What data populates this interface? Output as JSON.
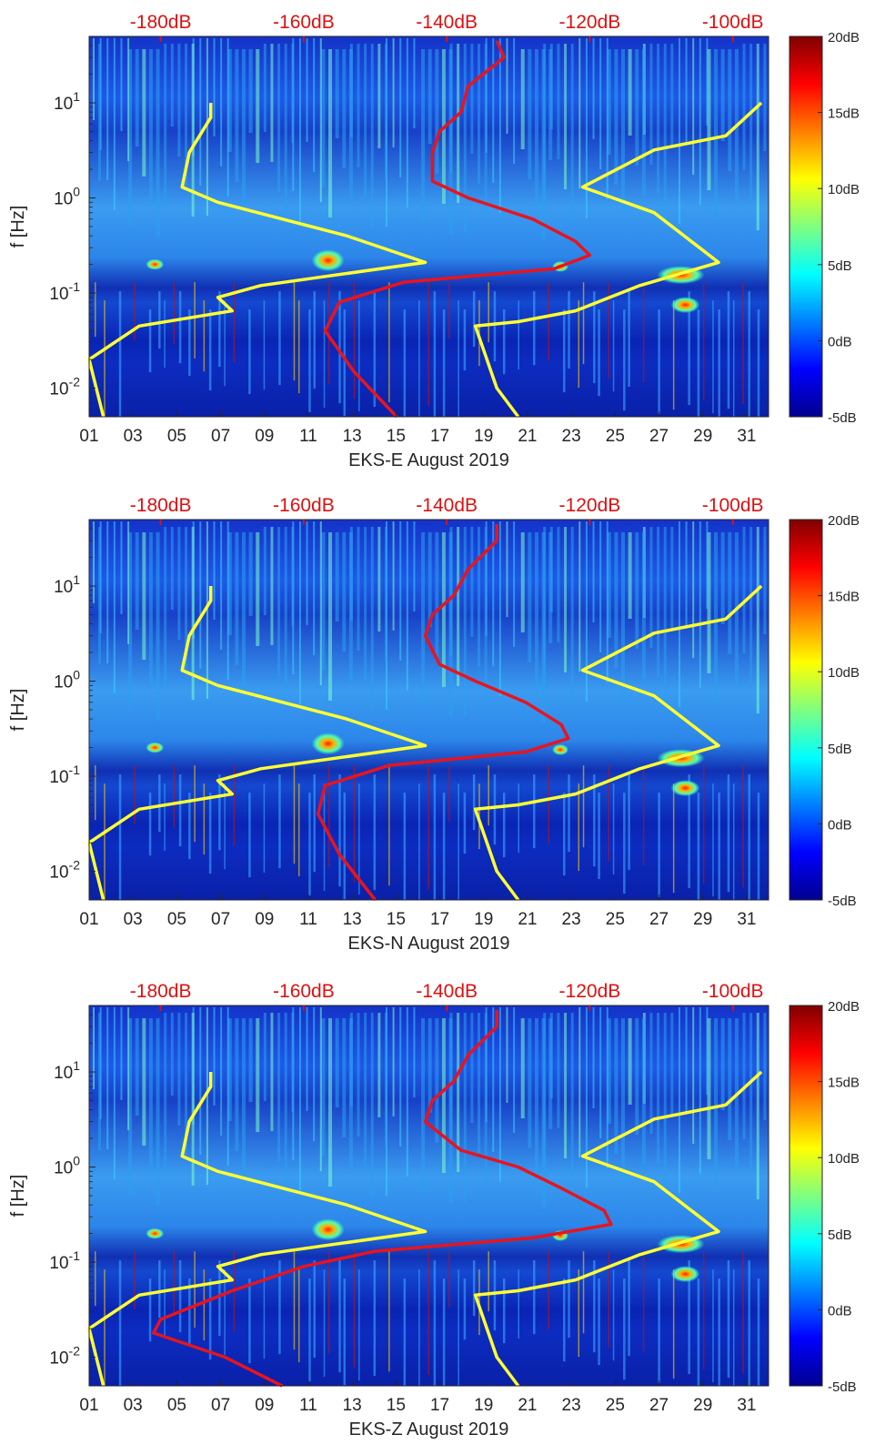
{
  "chart_data": [
    {
      "type": "heatmap",
      "title": "",
      "xlabel": "EKS-E August 2019",
      "ylabel": "f [Hz]",
      "x_ticks": [
        "01",
        "03",
        "05",
        "07",
        "09",
        "11",
        "13",
        "15",
        "17",
        "19",
        "21",
        "23",
        "25",
        "27",
        "29",
        "31"
      ],
      "x_range_days": [
        1,
        32
      ],
      "y_scale": "log",
      "ylim": [
        0.005,
        50
      ],
      "y_ticks": [
        "10-2",
        "10-1",
        "100",
        "101"
      ],
      "top_axis_ticks": [
        "-180dB",
        "-160dB",
        "-140dB",
        "-120dB",
        "-100dB"
      ],
      "top_axis_range": [
        -190,
        -95
      ],
      "colorbar": {
        "ticks": [
          "-5dB",
          "0dB",
          "5dB",
          "10dB",
          "15dB",
          "20dB"
        ],
        "range": [
          -5,
          20
        ],
        "colormap": "jet"
      },
      "series": [
        {
          "color": "#ffff33",
          "points": [
            [
              -173,
              10
            ],
            [
              -173,
              7
            ],
            [
              -176,
              3
            ],
            [
              -177,
              1.3
            ],
            [
              -172,
              0.9
            ],
            [
              -154,
              0.4
            ],
            [
              -143,
              0.21
            ],
            [
              -166,
              0.12
            ],
            [
              -172,
              0.09
            ],
            [
              -170,
              0.065
            ],
            [
              -183,
              0.045
            ],
            [
              -190,
              0.02
            ],
            [
              -188,
              0.005
            ]
          ]
        },
        {
          "color": "#ffff33",
          "points": [
            [
              -96,
              10
            ],
            [
              -101,
              4.5
            ],
            [
              -111,
              3.2
            ],
            [
              -121,
              1.3
            ],
            [
              -111,
              0.7
            ],
            [
              -102,
              0.21
            ],
            [
              -113,
              0.12
            ],
            [
              -122,
              0.065
            ],
            [
              -130,
              0.05
            ],
            [
              -136,
              0.045
            ],
            [
              -133,
              0.01
            ],
            [
              -130,
              0.005
            ]
          ]
        },
        {
          "color": "#e8141e",
          "points": [
            [
              -133,
              45
            ],
            [
              -132,
              30
            ],
            [
              -137,
              15
            ],
            [
              -138,
              8
            ],
            [
              -141,
              5
            ],
            [
              -142,
              3
            ],
            [
              -142,
              1.5
            ],
            [
              -137,
              1.0
            ],
            [
              -128,
              0.6
            ],
            [
              -122,
              0.35
            ],
            [
              -120,
              0.25
            ],
            [
              -125,
              0.18
            ],
            [
              -146,
              0.13
            ],
            [
              -155,
              0.08
            ],
            [
              -157,
              0.04
            ],
            [
              -153,
              0.015
            ],
            [
              -147,
              0.005
            ]
          ]
        }
      ]
    },
    {
      "type": "heatmap",
      "title": "",
      "xlabel": "EKS-N August 2019",
      "ylabel": "f [Hz]",
      "x_ticks": [
        "01",
        "03",
        "05",
        "07",
        "09",
        "11",
        "13",
        "15",
        "17",
        "19",
        "21",
        "23",
        "25",
        "27",
        "29",
        "31"
      ],
      "x_range_days": [
        1,
        32
      ],
      "y_scale": "log",
      "ylim": [
        0.005,
        50
      ],
      "y_ticks": [
        "10-2",
        "10-1",
        "100",
        "101"
      ],
      "top_axis_ticks": [
        "-180dB",
        "-160dB",
        "-140dB",
        "-120dB",
        "-100dB"
      ],
      "top_axis_range": [
        -190,
        -95
      ],
      "colorbar": {
        "ticks": [
          "-5dB",
          "0dB",
          "5dB",
          "10dB",
          "15dB",
          "20dB"
        ],
        "range": [
          -5,
          20
        ],
        "colormap": "jet"
      },
      "series": [
        {
          "color": "#ffff33",
          "points": [
            [
              -173,
              10
            ],
            [
              -173,
              7
            ],
            [
              -176,
              3
            ],
            [
              -177,
              1.3
            ],
            [
              -172,
              0.9
            ],
            [
              -154,
              0.4
            ],
            [
              -143,
              0.21
            ],
            [
              -166,
              0.12
            ],
            [
              -172,
              0.09
            ],
            [
              -170,
              0.065
            ],
            [
              -183,
              0.045
            ],
            [
              -190,
              0.02
            ],
            [
              -188,
              0.005
            ]
          ]
        },
        {
          "color": "#ffff33",
          "points": [
            [
              -96,
              10
            ],
            [
              -101,
              4.5
            ],
            [
              -111,
              3.2
            ],
            [
              -121,
              1.3
            ],
            [
              -111,
              0.7
            ],
            [
              -102,
              0.21
            ],
            [
              -113,
              0.12
            ],
            [
              -122,
              0.065
            ],
            [
              -130,
              0.05
            ],
            [
              -136,
              0.045
            ],
            [
              -133,
              0.01
            ],
            [
              -130,
              0.005
            ]
          ]
        },
        {
          "color": "#e8141e",
          "points": [
            [
              -133,
              45
            ],
            [
              -133,
              30
            ],
            [
              -137,
              15
            ],
            [
              -139,
              8
            ],
            [
              -142,
              5
            ],
            [
              -143,
              3
            ],
            [
              -141,
              1.5
            ],
            [
              -136,
              1.0
            ],
            [
              -129,
              0.6
            ],
            [
              -124,
              0.35
            ],
            [
              -123,
              0.25
            ],
            [
              -129,
              0.18
            ],
            [
              -148,
              0.13
            ],
            [
              -157,
              0.08
            ],
            [
              -158,
              0.04
            ],
            [
              -155,
              0.015
            ],
            [
              -150,
              0.005
            ]
          ]
        }
      ]
    },
    {
      "type": "heatmap",
      "title": "",
      "xlabel": "EKS-Z August 2019",
      "ylabel": "f [Hz]",
      "x_ticks": [
        "01",
        "03",
        "05",
        "07",
        "09",
        "11",
        "13",
        "15",
        "17",
        "19",
        "21",
        "23",
        "25",
        "27",
        "29",
        "31"
      ],
      "x_range_days": [
        1,
        32
      ],
      "y_scale": "log",
      "ylim": [
        0.005,
        50
      ],
      "y_ticks": [
        "10-2",
        "10-1",
        "100",
        "101"
      ],
      "top_axis_ticks": [
        "-180dB",
        "-160dB",
        "-140dB",
        "-120dB",
        "-100dB"
      ],
      "top_axis_range": [
        -190,
        -95
      ],
      "colorbar": {
        "ticks": [
          "-5dB",
          "0dB",
          "5dB",
          "10dB",
          "15dB",
          "20dB"
        ],
        "range": [
          -5,
          20
        ],
        "colormap": "jet"
      },
      "series": [
        {
          "color": "#ffff33",
          "points": [
            [
              -173,
              10
            ],
            [
              -173,
              7
            ],
            [
              -176,
              3
            ],
            [
              -177,
              1.3
            ],
            [
              -172,
              0.9
            ],
            [
              -154,
              0.4
            ],
            [
              -143,
              0.21
            ],
            [
              -166,
              0.12
            ],
            [
              -172,
              0.09
            ],
            [
              -170,
              0.065
            ],
            [
              -183,
              0.045
            ],
            [
              -190,
              0.02
            ],
            [
              -188,
              0.005
            ]
          ]
        },
        {
          "color": "#ffff33",
          "points": [
            [
              -96,
              10
            ],
            [
              -101,
              4.5
            ],
            [
              -111,
              3.2
            ],
            [
              -121,
              1.3
            ],
            [
              -111,
              0.7
            ],
            [
              -102,
              0.21
            ],
            [
              -113,
              0.12
            ],
            [
              -122,
              0.065
            ],
            [
              -130,
              0.05
            ],
            [
              -136,
              0.045
            ],
            [
              -133,
              0.01
            ],
            [
              -130,
              0.005
            ]
          ]
        },
        {
          "color": "#e8141e",
          "points": [
            [
              -133,
              45
            ],
            [
              -133,
              30
            ],
            [
              -137,
              15
            ],
            [
              -139,
              8
            ],
            [
              -142,
              5
            ],
            [
              -143,
              3
            ],
            [
              -138,
              1.5
            ],
            [
              -130,
              1.0
            ],
            [
              -124,
              0.6
            ],
            [
              -118,
              0.35
            ],
            [
              -117,
              0.25
            ],
            [
              -128,
              0.18
            ],
            [
              -150,
              0.13
            ],
            [
              -160,
              0.09
            ],
            [
              -170,
              0.05
            ],
            [
              -180,
              0.025
            ],
            [
              -181,
              0.018
            ],
            [
              -171,
              0.01
            ],
            [
              -163,
              0.005
            ]
          ]
        }
      ]
    }
  ]
}
